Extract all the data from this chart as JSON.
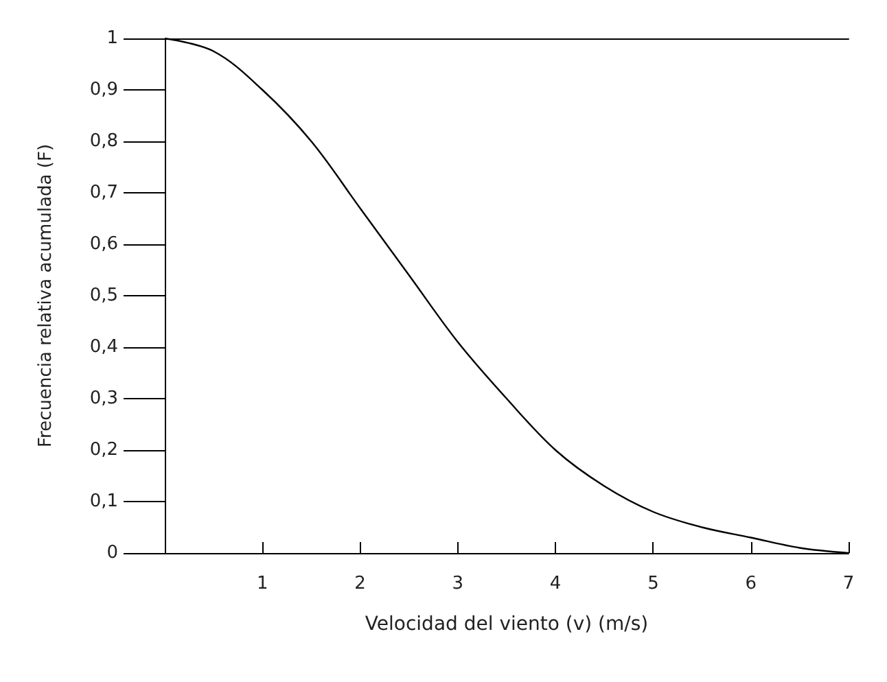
{
  "chart_data": {
    "type": "line",
    "xlabel": "Velocidad del viento (v) (m/s)",
    "ylabel": "Frecuencia relativa acumulada (F)",
    "x": [
      0,
      0.5,
      1,
      1.5,
      2,
      2.5,
      3,
      3.5,
      4,
      4.5,
      5,
      5.5,
      6,
      6.5,
      7
    ],
    "series": [
      {
        "color": "#000000",
        "values": [
          1,
          0.975,
          0.9,
          0.8,
          0.67,
          0.54,
          0.41,
          0.3,
          0.2,
          0.13,
          0.08,
          0.05,
          0.03,
          0.01,
          0.0
        ]
      }
    ],
    "xlim": [
      0,
      7
    ],
    "xticks": [
      1,
      2,
      3,
      4,
      5,
      6,
      7
    ],
    "ylim": [
      0,
      1
    ],
    "yticks": [
      {
        "value": 0,
        "label": "0"
      },
      {
        "value": 0.1,
        "label": "0,1"
      },
      {
        "value": 0.2,
        "label": "0,2"
      },
      {
        "value": 0.3,
        "label": "0,3"
      },
      {
        "value": 0.4,
        "label": "0,4"
      },
      {
        "value": 0.5,
        "label": "0,5"
      },
      {
        "value": 0.6,
        "label": "0,6"
      },
      {
        "value": 0.7,
        "label": "0,7"
      },
      {
        "value": 0.8,
        "label": "0,8"
      },
      {
        "value": 0.9,
        "label": "0,9"
      },
      {
        "value": 1,
        "label": "1"
      }
    ],
    "grid": false,
    "marker": "none",
    "line_style": "solid"
  }
}
